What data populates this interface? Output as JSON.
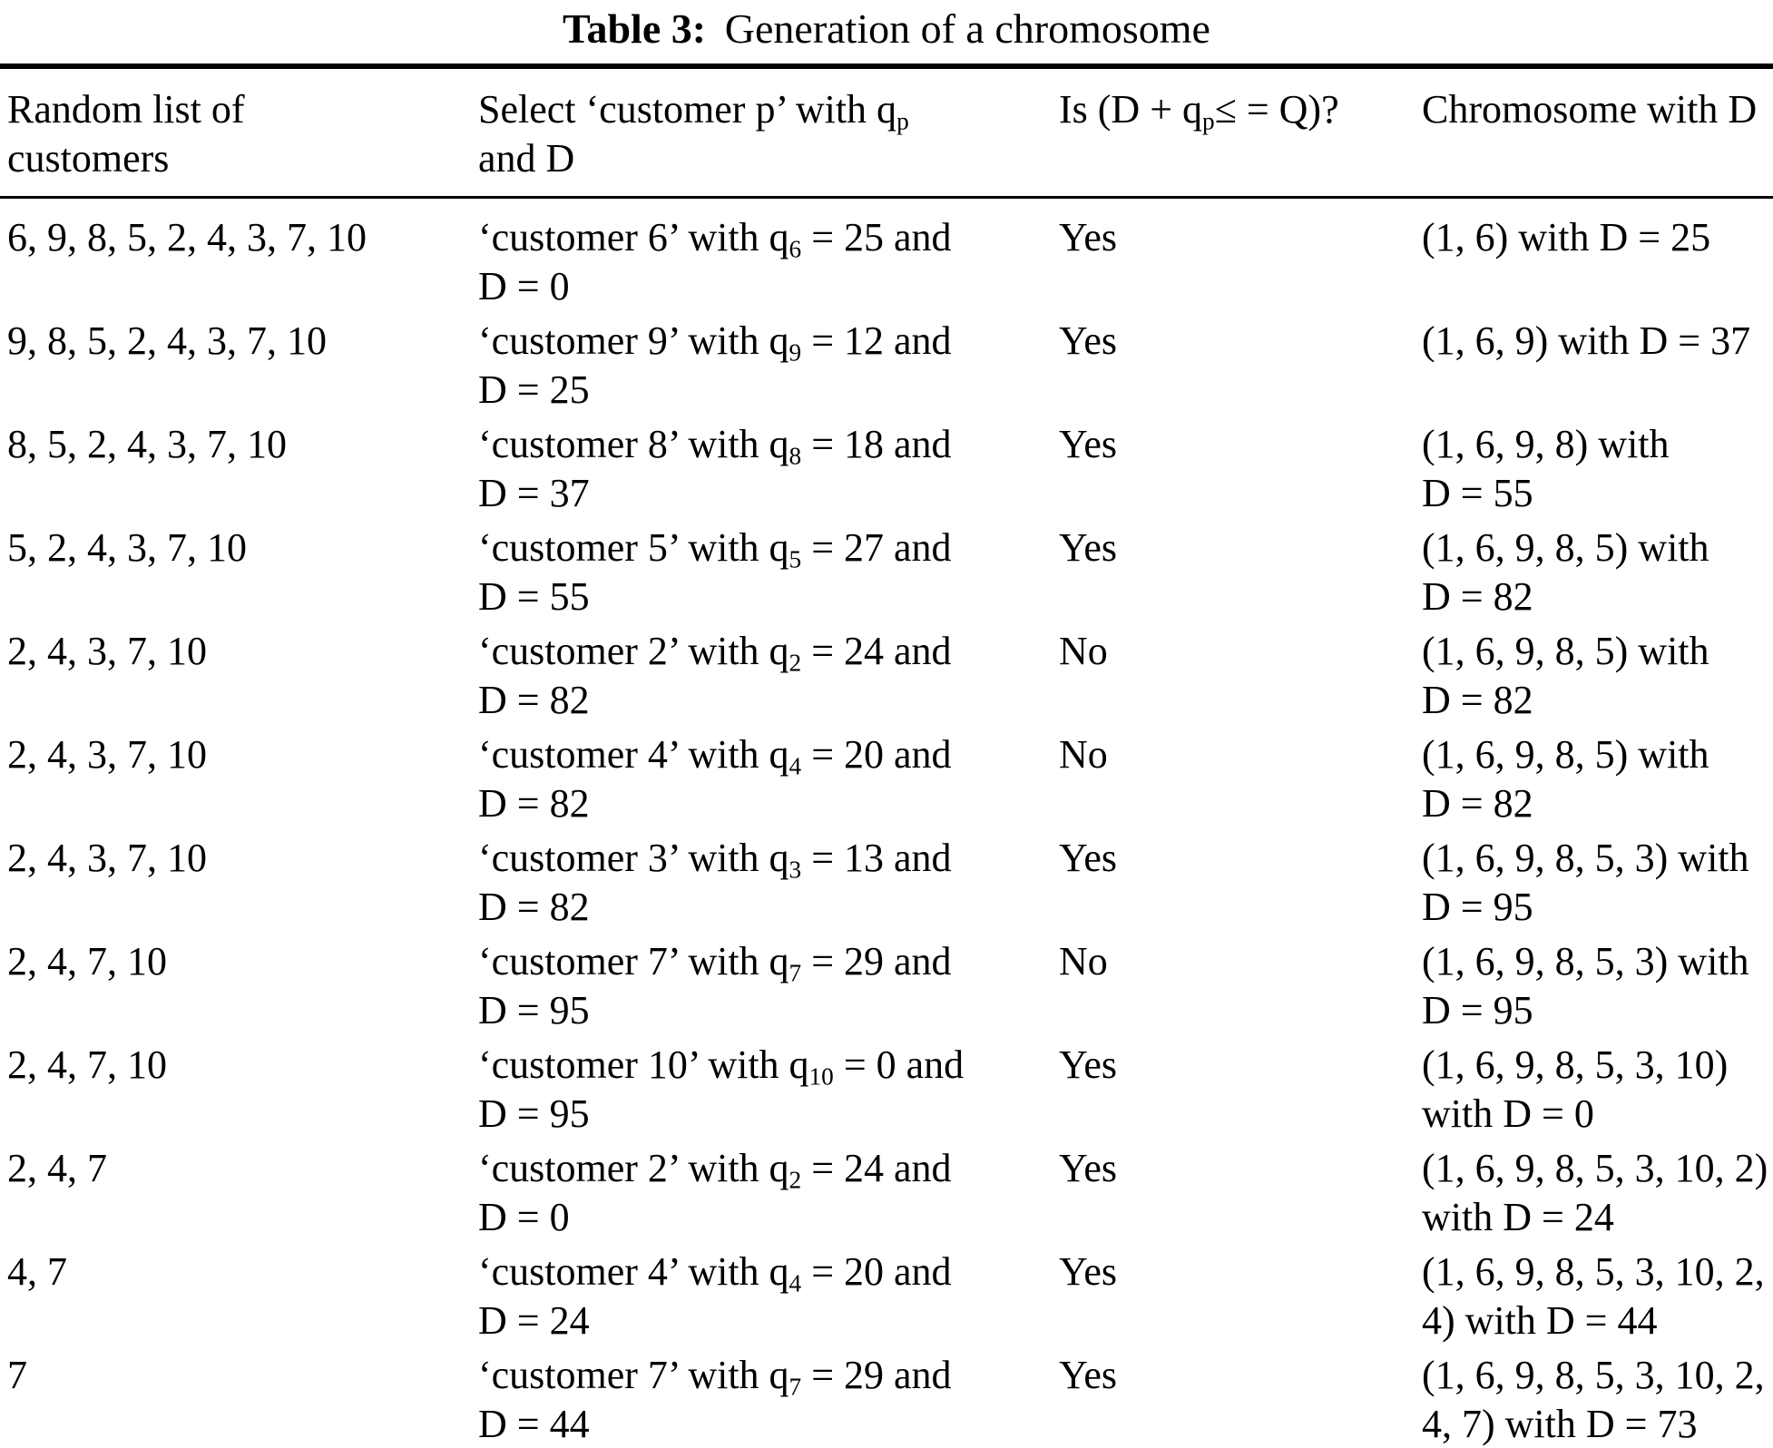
{
  "caption": {
    "label": "Table 3:",
    "text": "Generation of a chromosome"
  },
  "header": {
    "cols": [
      {
        "runs": "Random list of\ncustomers"
      },
      {
        "runs": [
          "Select ‘customer p’ with q",
          {
            "sub": "p"
          },
          "\nand D"
        ]
      },
      {
        "runs": [
          "Is (D + q",
          {
            "sub": "p"
          },
          "≤ = Q)?"
        ]
      },
      {
        "runs": "Chromosome with D"
      }
    ]
  },
  "rows": [
    {
      "random_list": "6, 9, 8, 5, 2, 4, 3, 7, 10",
      "select": [
        "‘customer 6’ with q",
        {
          "sub": "6"
        },
        " = 25 and\nD = 0"
      ],
      "feasible": "Yes",
      "chromosome": "(1, 6) with D = 25"
    },
    {
      "random_list": "9, 8, 5, 2, 4, 3, 7, 10",
      "select": [
        "‘customer 9’ with q",
        {
          "sub": "9"
        },
        " = 12 and\nD = 25"
      ],
      "feasible": "Yes",
      "chromosome": "(1, 6, 9) with D = 37"
    },
    {
      "random_list": "8, 5, 2, 4, 3, 7, 10",
      "select": [
        "‘customer 8’ with q",
        {
          "sub": "8"
        },
        " = 18 and\nD = 37"
      ],
      "feasible": "Yes",
      "chromosome": "(1, 6, 9, 8) with\nD = 55"
    },
    {
      "random_list": "5, 2, 4, 3, 7, 10",
      "select": [
        "‘customer 5’ with q",
        {
          "sub": "5"
        },
        " = 27 and\nD = 55"
      ],
      "feasible": "Yes",
      "chromosome": "(1, 6, 9, 8, 5) with\nD = 82"
    },
    {
      "random_list": "2, 4, 3, 7, 10",
      "select": [
        "‘customer 2’ with q",
        {
          "sub": "2"
        },
        " = 24 and\nD = 82"
      ],
      "feasible": "No",
      "chromosome": "(1, 6, 9, 8, 5) with\nD = 82"
    },
    {
      "random_list": "2, 4, 3, 7, 10",
      "select": [
        "‘customer 4’ with q",
        {
          "sub": "4"
        },
        " = 20 and\nD = 82"
      ],
      "feasible": "No",
      "chromosome": "(1, 6, 9, 8, 5) with\nD = 82"
    },
    {
      "random_list": "2, 4, 3, 7, 10",
      "select": [
        "‘customer 3’ with q",
        {
          "sub": "3"
        },
        " = 13 and\nD = 82"
      ],
      "feasible": "Yes",
      "chromosome": "(1, 6, 9, 8, 5, 3) with\nD = 95"
    },
    {
      "random_list": "2, 4, 7, 10",
      "select": [
        "‘customer 7’ with q",
        {
          "sub": "7"
        },
        " = 29 and\nD = 95"
      ],
      "feasible": "No",
      "chromosome": "(1, 6, 9, 8, 5, 3) with\nD = 95"
    },
    {
      "random_list": "2, 4, 7, 10",
      "select": [
        "‘customer 10’ with q",
        {
          "sub": "10"
        },
        " = 0 and\nD = 95"
      ],
      "feasible": "Yes",
      "chromosome": "(1, 6, 9, 8, 5, 3, 10)\nwith D = 0"
    },
    {
      "random_list": "2, 4, 7",
      "select": [
        "‘customer 2’ with q",
        {
          "sub": "2"
        },
        " = 24 and\nD = 0"
      ],
      "feasible": "Yes",
      "chromosome": "(1, 6, 9, 8, 5, 3, 10, 2)\nwith D = 24"
    },
    {
      "random_list": "4, 7",
      "select": [
        "‘customer 4’ with q",
        {
          "sub": "4"
        },
        " = 20 and\nD = 24"
      ],
      "feasible": "Yes",
      "chromosome": "(1, 6, 9, 8, 5, 3, 10, 2,\n4) with D = 44"
    },
    {
      "random_list": "7",
      "select": [
        "‘customer 7’ with q",
        {
          "sub": "7"
        },
        " = 29 and\nD = 44"
      ],
      "feasible": "Yes",
      "chromosome": "(1, 6, 9, 8, 5, 3, 10, 2,\n4, 7) with D = 73"
    }
  ]
}
